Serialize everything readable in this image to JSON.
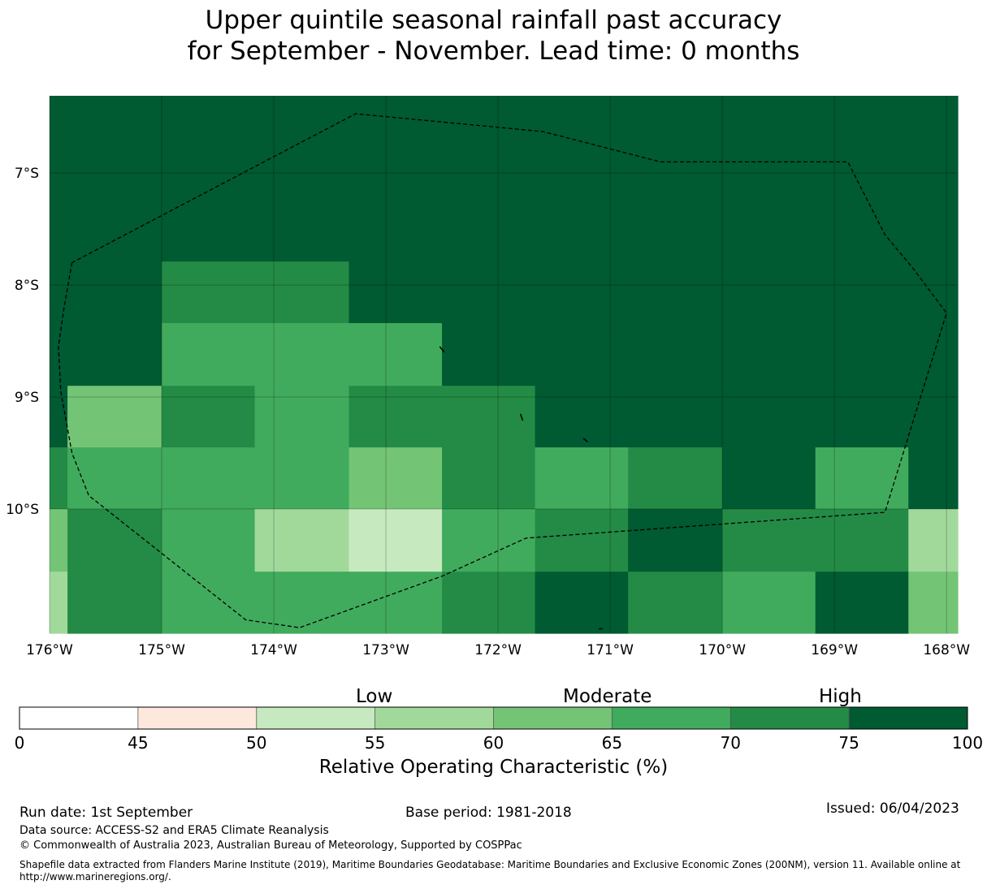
{
  "title": {
    "line1": "Upper quintile seasonal rainfall past accuracy",
    "line2": "for September - November. Lead time: 0 months"
  },
  "map": {
    "lon_labels": [
      "176°W",
      "175°W",
      "174°W",
      "173°W",
      "172°W",
      "171°W",
      "170°W",
      "169°W",
      "168°W"
    ],
    "lat_labels": [
      "7°S",
      "8°S",
      "9°S",
      "10°S"
    ],
    "extent": {
      "lon_min": -176.0,
      "lon_max": -167.9,
      "lat_north": -6.31,
      "lat_south": -11.11
    },
    "cell_boundaries": {
      "lon_edges": [
        -176.0,
        -175.84,
        -175.0,
        -174.17,
        -173.33,
        -172.5,
        -171.67,
        -170.84,
        -170.0,
        -169.17,
        -168.34,
        -167.9
      ],
      "lat_edges": [
        -6.31,
        -7.79,
        -8.34,
        -8.9,
        -9.45,
        -10.0,
        -10.56,
        -11.11
      ]
    },
    "grid_roc_classes": [
      [
        "75-100",
        "75-100",
        "75-100",
        "75-100",
        "75-100",
        "75-100",
        "75-100",
        "75-100",
        "75-100",
        "75-100",
        "75-100"
      ],
      [
        "75-100",
        "75-100",
        "70-75",
        "70-75",
        "75-100",
        "75-100",
        "75-100",
        "75-100",
        "75-100",
        "75-100",
        "75-100"
      ],
      [
        "75-100",
        "75-100",
        "65-70",
        "65-70",
        "65-70",
        "75-100",
        "75-100",
        "75-100",
        "75-100",
        "75-100",
        "75-100"
      ],
      [
        "75-100",
        "60-65",
        "70-75",
        "65-70",
        "70-75",
        "70-75",
        "75-100",
        "75-100",
        "75-100",
        "75-100",
        "75-100"
      ],
      [
        "70-75",
        "65-70",
        "65-70",
        "65-70",
        "60-65",
        "70-75",
        "65-70",
        "70-75",
        "75-100",
        "65-70",
        "75-100"
      ],
      [
        "60-65",
        "70-75",
        "65-70",
        "55-60",
        "50-55",
        "65-70",
        "70-75",
        "75-100",
        "70-75",
        "70-75",
        "55-60"
      ],
      [
        "55-60",
        "70-75",
        "65-70",
        "65-70",
        "65-70",
        "70-75",
        "75-100",
        "70-75",
        "65-70",
        "75-100",
        "60-65"
      ]
    ],
    "eez_boundary_lonlat": [
      [
        -175.8,
        -7.8
      ],
      [
        -175.87,
        -8.2
      ],
      [
        -175.92,
        -8.55
      ],
      [
        -175.9,
        -8.95
      ],
      [
        -175.8,
        -9.5
      ],
      [
        -175.65,
        -9.88
      ],
      [
        -174.25,
        -10.99
      ],
      [
        -173.77,
        -11.06
      ],
      [
        -172.5,
        -10.6
      ],
      [
        -171.75,
        -10.26
      ],
      [
        -168.55,
        -10.03
      ],
      [
        -168.0,
        -8.25
      ],
      [
        -168.3,
        -7.85
      ],
      [
        -168.55,
        -7.55
      ],
      [
        -168.88,
        -6.9
      ],
      [
        -170.55,
        -6.9
      ],
      [
        -171.6,
        -6.63
      ],
      [
        -173.27,
        -6.47
      ],
      [
        -175.8,
        -7.8
      ]
    ],
    "islands_lonlat": [
      [
        [
          -172.52,
          -8.55
        ],
        [
          -172.48,
          -8.6
        ]
      ],
      [
        [
          -171.8,
          -9.15
        ],
        [
          -171.78,
          -9.21
        ]
      ],
      [
        [
          -171.24,
          -9.37
        ],
        [
          -171.2,
          -9.4
        ]
      ],
      [
        [
          -171.1,
          -11.07
        ],
        [
          -171.07,
          -11.07
        ]
      ]
    ]
  },
  "colorbar": {
    "ticks": [
      "0",
      "45",
      "50",
      "55",
      "60",
      "65",
      "70",
      "75",
      "100"
    ],
    "colors": [
      "#ffffff",
      "#fee8de",
      "#c7e9c0",
      "#a1d99b",
      "#74c476",
      "#41ab5d",
      "#238b45",
      "#005a32"
    ],
    "class_keys": [
      "0-45",
      "45-50",
      "50-55",
      "55-60",
      "60-65",
      "65-70",
      "70-75",
      "75-100"
    ],
    "categories": [
      "Low",
      "Moderate",
      "High"
    ],
    "label": "Relative Operating Characteristic (%)"
  },
  "footer": {
    "run_date": "Run date: 1st September",
    "base_period": "Base period: 1981-2018",
    "issued": "Issued: 06/04/2023",
    "data_source": "Data source: ACCESS-S2 and ERA5 Climate Reanalysis",
    "copyright": "© Commonwealth of Australia 2023, Australian Bureau of Meteorology, Supported by COSPPac",
    "shapefile_line1": "Shapefile data extracted from Flanders Marine Institute (2019), Maritime Boundaries Geodatabase: Maritime Boundaries and Exclusive Economic Zones (200NM), version 11. Available online at",
    "shapefile_line2": "http://www.marineregions.org/."
  }
}
